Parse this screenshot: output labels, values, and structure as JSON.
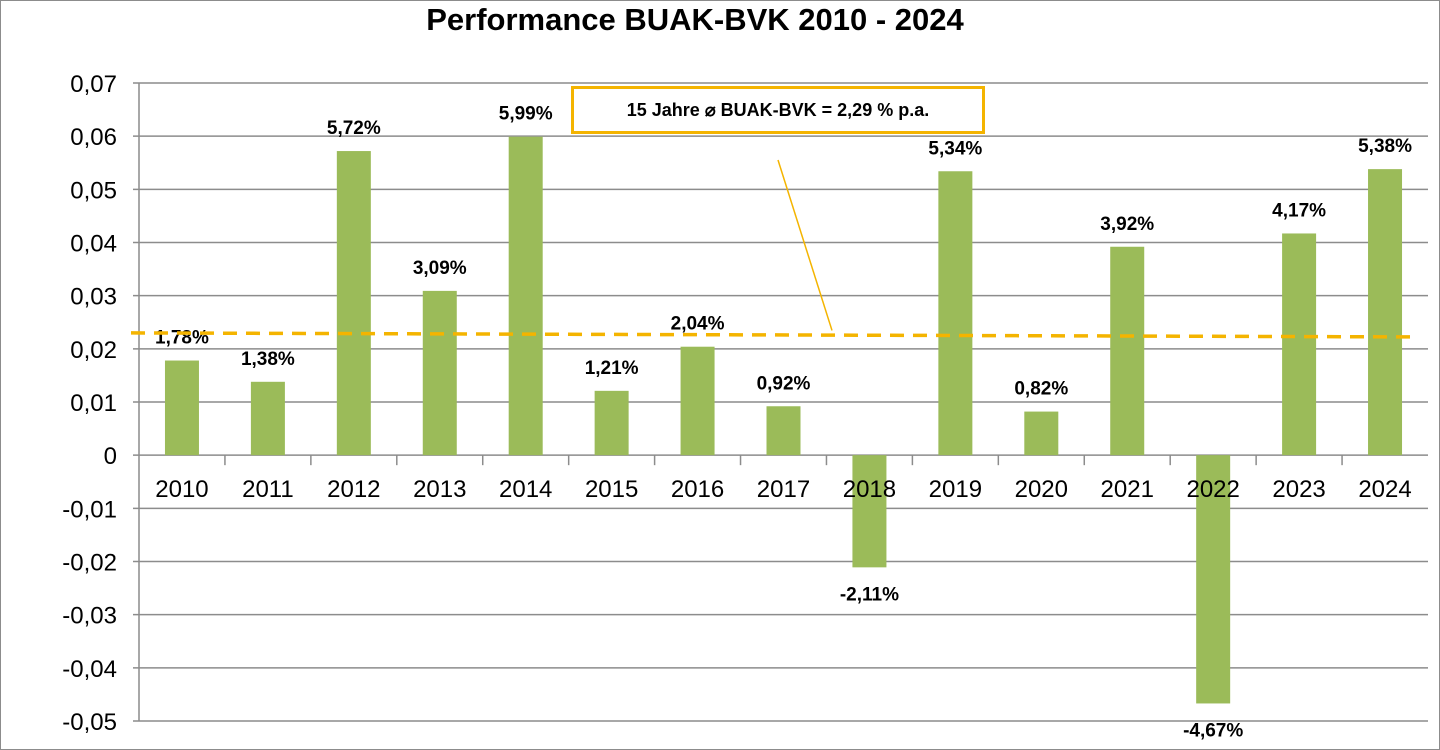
{
  "chart_data": {
    "type": "bar",
    "title": "Performance BUAK-BVK 2010 - 2024",
    "categories": [
      "2010",
      "2011",
      "2012",
      "2013",
      "2014",
      "2015",
      "2016",
      "2017",
      "2018",
      "2019",
      "2020",
      "2021",
      "2022",
      "2023",
      "2024"
    ],
    "values": [
      0.0178,
      0.0138,
      0.0572,
      0.0309,
      0.0599,
      0.0121,
      0.0204,
      0.0092,
      -0.0211,
      0.0534,
      0.0082,
      0.0392,
      -0.0467,
      0.0417,
      0.0538
    ],
    "data_labels": [
      "1,78%",
      "1,38%",
      "5,72%",
      "3,09%",
      "5,99%",
      "1,21%",
      "2,04%",
      "0,92%",
      "-2,11%",
      "5,34%",
      "0,82%",
      "3,92%",
      "-4,67%",
      "4,17%",
      "5,38%"
    ],
    "y_ticks": [
      "0,07",
      "0,06",
      "0,05",
      "0,04",
      "0,03",
      "0,02",
      "0,01",
      "0",
      "-0,01",
      "-0,02",
      "-0,03",
      "-0,04",
      "-0,05"
    ],
    "ylim": [
      -0.05,
      0.07
    ],
    "grid": true,
    "bar_color": "#9bbb59",
    "average": {
      "value": 0.0229,
      "label": "15 Jahre ⌀ BUAK-BVK = 2,29 % p.a.",
      "line_color": "#f4b400"
    }
  }
}
